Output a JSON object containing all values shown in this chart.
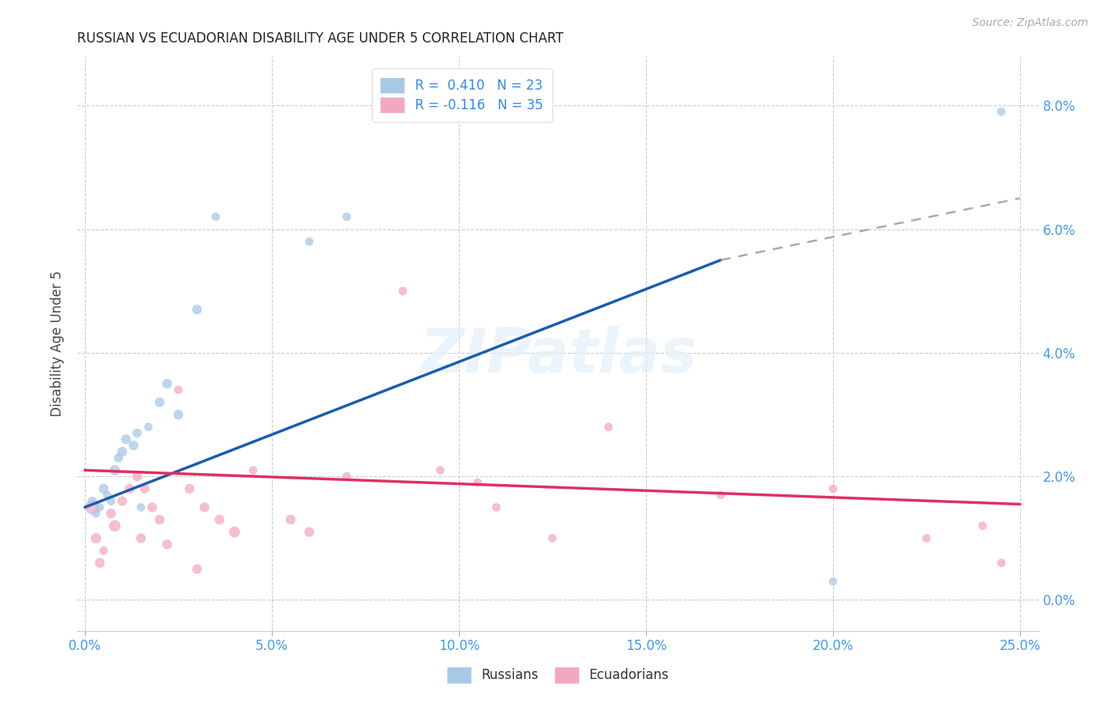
{
  "title": "RUSSIAN VS ECUADORIAN DISABILITY AGE UNDER 5 CORRELATION CHART",
  "source": "Source: ZipAtlas.com",
  "xlabel_vals": [
    0.0,
    5.0,
    10.0,
    15.0,
    20.0,
    25.0
  ],
  "ylabel_vals": [
    0.0,
    2.0,
    4.0,
    6.0,
    8.0
  ],
  "xlim": [
    -0.2,
    25.5
  ],
  "ylim": [
    -0.5,
    8.8
  ],
  "russian_color": "#a8c8e8",
  "ecuadorian_color": "#f4a8c0",
  "russian_line_color": "#1a5cb0",
  "ecuadorian_line_color": "#e03060",
  "trendline_ext_color": "#aaaaaa",
  "watermark": "ZIPatlas",
  "ylabel": "Disability Age Under 5",
  "russian_line_x0": 0.0,
  "russian_line_y0": 1.5,
  "russian_line_x1": 17.0,
  "russian_line_y1": 5.5,
  "russian_line_ext_x1": 25.0,
  "russian_line_ext_y1": 6.5,
  "ecuadorian_line_x0": 0.0,
  "ecuadorian_line_y0": 2.1,
  "ecuadorian_line_x1": 25.0,
  "ecuadorian_line_y1": 1.55,
  "legend_r1": "R =  0.410   N = 23",
  "legend_r2": "R = -0.116   N = 35",
  "russians_x": [
    0.2,
    0.3,
    0.4,
    0.5,
    0.6,
    0.7,
    0.8,
    0.9,
    1.0,
    1.1,
    1.3,
    1.4,
    1.5,
    1.7,
    2.0,
    2.2,
    2.5,
    3.0,
    3.5,
    6.0,
    7.0,
    20.0,
    24.5
  ],
  "russians_y": [
    1.6,
    1.4,
    1.5,
    1.8,
    1.7,
    1.6,
    2.1,
    2.3,
    2.4,
    2.6,
    2.5,
    2.7,
    1.5,
    2.8,
    3.2,
    3.5,
    3.0,
    4.7,
    6.2,
    5.8,
    6.2,
    0.3,
    7.9
  ],
  "russians_s": [
    70,
    60,
    60,
    80,
    60,
    60,
    90,
    70,
    80,
    80,
    80,
    70,
    60,
    60,
    80,
    80,
    80,
    80,
    60,
    60,
    60,
    60,
    60
  ],
  "ecuadorians_x": [
    0.2,
    0.3,
    0.5,
    0.7,
    0.8,
    1.0,
    1.2,
    1.4,
    1.6,
    1.8,
    2.0,
    2.2,
    2.5,
    2.8,
    3.2,
    3.6,
    4.0,
    4.5,
    5.5,
    6.0,
    7.0,
    8.5,
    9.5,
    10.5,
    11.0,
    12.5,
    14.0,
    17.0,
    20.0,
    22.5,
    24.0,
    24.5,
    0.4,
    1.5,
    3.0
  ],
  "ecuadorians_y": [
    1.5,
    1.0,
    0.8,
    1.4,
    1.2,
    1.6,
    1.8,
    2.0,
    1.8,
    1.5,
    1.3,
    0.9,
    3.4,
    1.8,
    1.5,
    1.3,
    1.1,
    2.1,
    1.3,
    1.1,
    2.0,
    5.0,
    2.1,
    1.9,
    1.5,
    1.0,
    2.8,
    1.7,
    1.8,
    1.0,
    1.2,
    0.6,
    0.6,
    1.0,
    0.5
  ],
  "ecuadorians_s": [
    180,
    90,
    60,
    80,
    110,
    80,
    80,
    80,
    80,
    80,
    80,
    80,
    60,
    80,
    80,
    80,
    100,
    60,
    80,
    80,
    60,
    60,
    60,
    60,
    60,
    60,
    60,
    60,
    60,
    60,
    60,
    60,
    80,
    80,
    80
  ]
}
